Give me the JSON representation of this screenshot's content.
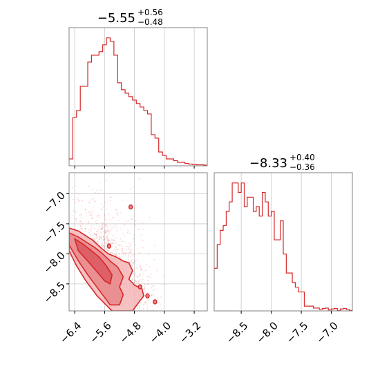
{
  "colors": {
    "accent": "#d62728",
    "fill_light": "#f4b6b7",
    "fill_mid": "#e8868a",
    "fill_dark": "#d9585d",
    "grid": "#c8c8c8",
    "frame": "#808080"
  },
  "chart_data": [
    {
      "type": "histogram",
      "panel": "marginal-param-1",
      "title": {
        "median": "−5.55",
        "plus": "+0.56",
        "minus": "−0.48"
      },
      "xlim": [
        -6.55,
        -2.85
      ],
      "grid": "vertical",
      "x_ticks": [
        -6.4,
        -5.6,
        -4.8,
        -4.0,
        -3.2
      ],
      "bins_start": -6.55,
      "bin_width": 0.1,
      "values": [
        2,
        14,
        16,
        23,
        23,
        30,
        32,
        32,
        33,
        35,
        37,
        36,
        32,
        24,
        22,
        21,
        20,
        19,
        18,
        17,
        16,
        15,
        9,
        8,
        4,
        3,
        2,
        2,
        1.5,
        1,
        1,
        0.7,
        0.5,
        0.4,
        0.3,
        0.3,
        0.2
      ]
    },
    {
      "type": "histogram",
      "panel": "marginal-param-2",
      "title": {
        "median": "−8.33",
        "plus": "+0.40",
        "minus": "−0.36"
      },
      "xlim": [
        -8.95,
        -6.65
      ],
      "grid": "vertical",
      "x_ticks": [
        -8.5,
        -8.0,
        -7.5,
        -7.0
      ],
      "x_tick_labels": [
        "−8.5",
        "−8.0",
        "−7.5",
        "−7.0"
      ],
      "bins_start": -8.95,
      "bin_width": 0.05,
      "values": [
        9,
        14,
        17,
        18,
        21,
        23,
        27,
        27,
        25,
        27,
        22,
        24,
        24,
        21,
        22,
        20,
        25,
        23,
        20,
        21,
        15,
        15,
        19,
        12,
        8,
        8,
        6,
        5,
        4,
        4,
        1,
        1,
        1,
        0.6,
        0.6,
        0.3,
        0.5,
        0.6,
        0.2,
        0.4,
        0.5,
        0.1,
        0.4,
        0.5,
        0.3,
        0.1
      ]
    },
    {
      "type": "scatter",
      "panel": "joint-param1-param2",
      "xlim": [
        -6.55,
        -2.85
      ],
      "ylim": [
        -8.95,
        -6.65
      ],
      "grid": "both",
      "x_ticks": [
        -6.4,
        -5.6,
        -4.8,
        -4.0,
        -3.2
      ],
      "x_tick_labels": [
        "−6.4",
        "−5.6",
        "−4.8",
        "−4.0",
        "−3.2"
      ],
      "y_ticks": [
        -7.0,
        -7.5,
        -8.0,
        -8.5
      ],
      "y_tick_labels": [
        "−7.0",
        "−7.5",
        "−8.0",
        "−8.5"
      ],
      "contours": [
        {
          "level": "outer",
          "points": [
            [
              -6.55,
              -7.57
            ],
            [
              -6.3,
              -7.62
            ],
            [
              -6.1,
              -7.7
            ],
            [
              -5.9,
              -7.78
            ],
            [
              -5.7,
              -7.9
            ],
            [
              -5.5,
              -8.0
            ],
            [
              -5.3,
              -8.05
            ],
            [
              -5.1,
              -8.12
            ],
            [
              -4.95,
              -8.15
            ],
            [
              -4.85,
              -8.28
            ],
            [
              -4.95,
              -8.42
            ],
            [
              -4.8,
              -8.52
            ],
            [
              -4.6,
              -8.58
            ],
            [
              -4.55,
              -8.7
            ],
            [
              -4.7,
              -8.82
            ],
            [
              -4.85,
              -8.95
            ],
            [
              -5.4,
              -8.95
            ],
            [
              -5.8,
              -8.7
            ],
            [
              -6.1,
              -8.45
            ],
            [
              -6.35,
              -8.2
            ],
            [
              -6.55,
              -7.95
            ]
          ]
        },
        {
          "level": "middle",
          "points": [
            [
              -6.55,
              -7.65
            ],
            [
              -6.3,
              -7.72
            ],
            [
              -6.05,
              -7.82
            ],
            [
              -5.85,
              -7.9
            ],
            [
              -5.65,
              -8.0
            ],
            [
              -5.45,
              -8.12
            ],
            [
              -5.25,
              -8.22
            ],
            [
              -5.1,
              -8.38
            ],
            [
              -5.2,
              -8.55
            ],
            [
              -5.1,
              -8.68
            ],
            [
              -5.2,
              -8.85
            ],
            [
              -5.45,
              -8.85
            ],
            [
              -5.75,
              -8.6
            ],
            [
              -6.05,
              -8.35
            ],
            [
              -6.3,
              -8.12
            ],
            [
              -6.55,
              -7.85
            ]
          ]
        },
        {
          "level": "inner",
          "points": [
            [
              -6.4,
              -7.75
            ],
            [
              -6.15,
              -7.85
            ],
            [
              -5.95,
              -7.95
            ],
            [
              -5.75,
              -8.05
            ],
            [
              -5.55,
              -8.2
            ],
            [
              -5.4,
              -8.35
            ],
            [
              -5.45,
              -8.5
            ],
            [
              -5.6,
              -8.45
            ],
            [
              -5.8,
              -8.3
            ],
            [
              -6.05,
              -8.12
            ],
            [
              -6.3,
              -7.95
            ]
          ]
        }
      ],
      "islands": [
        [
          -4.9,
          -7.22
        ],
        [
          -5.48,
          -7.87
        ],
        [
          -4.45,
          -8.7
        ],
        [
          -4.25,
          -8.8
        ],
        [
          -4.65,
          -8.55
        ]
      ]
    }
  ]
}
